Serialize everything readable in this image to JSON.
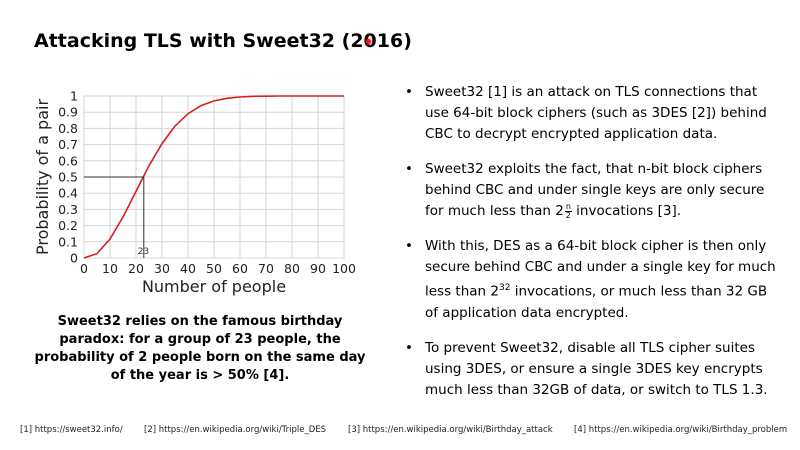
{
  "slide": {
    "title": "Attacking TLS with Sweet32 (2016)",
    "caption": "Sweet32 relies on the famous birthday paradox: for a group of 23 people, the probability of 2 people born on the same day of the year is > 50% [4].",
    "bullets": {
      "b1": "Sweet32 [1] is an attack on TLS connections that use 64-bit block ciphers (such as 3DES [2]) behind CBC to decrypt encrypted application data.",
      "b2_pre": "Sweet32 exploits the fact, that n-bit block ciphers behind CBC and under single keys are only secure for much less than 2",
      "b2_num": "n",
      "b2_den": "2",
      "b2_post": " invocations [3].",
      "b3_pre": "With this, DES as a 64-bit block cipher is then only secure behind CBC and under a single key for much less than 2",
      "b3_exp": "32",
      "b3_post": " invocations, or much less than 32 GB of application data encrypted.",
      "b4": "To prevent Sweet32, disable all TLS cipher suites using 3DES, or ensure a single 3DES key encrypts much less than 32GB of data, or switch to TLS 1.3."
    },
    "references": [
      "[1] https://sweet32.info/",
      "[2] https://en.wikipedia.org/wiki/Triple_DES",
      "[3] https://en.wikipedia.org/wiki/Birthday_attack",
      "[4] https://en.wikipedia.org/wiki/Birthday_problem"
    ]
  },
  "chart_data": {
    "type": "line",
    "xlabel": "Number of people",
    "ylabel": "Probability of a pair",
    "xlim": [
      0,
      100
    ],
    "ylim": [
      0,
      1
    ],
    "grid": true,
    "x_ticks": [
      "0",
      "10",
      "20",
      "30",
      "40",
      "50",
      "60",
      "70",
      "80",
      "90",
      "100"
    ],
    "y_ticks": [
      "0",
      "0.1",
      "0.2",
      "0.3",
      "0.4",
      "0.5",
      "0.6",
      "0.7",
      "0.8",
      "0.9",
      "1"
    ],
    "series": [
      {
        "name": "Probability of a pair",
        "color": "#d42020",
        "x": [
          0,
          5,
          10,
          15,
          20,
          23,
          25,
          30,
          35,
          40,
          45,
          50,
          55,
          60,
          65,
          70,
          75,
          80,
          85,
          90,
          95,
          100
        ],
        "y": [
          0,
          0.027,
          0.117,
          0.253,
          0.411,
          0.507,
          0.569,
          0.706,
          0.814,
          0.891,
          0.941,
          0.97,
          0.986,
          0.994,
          0.998,
          0.999,
          1,
          1,
          1,
          1,
          1,
          1
        ]
      }
    ],
    "annotation": {
      "x": 23,
      "y": 0.5,
      "label": "23"
    }
  }
}
